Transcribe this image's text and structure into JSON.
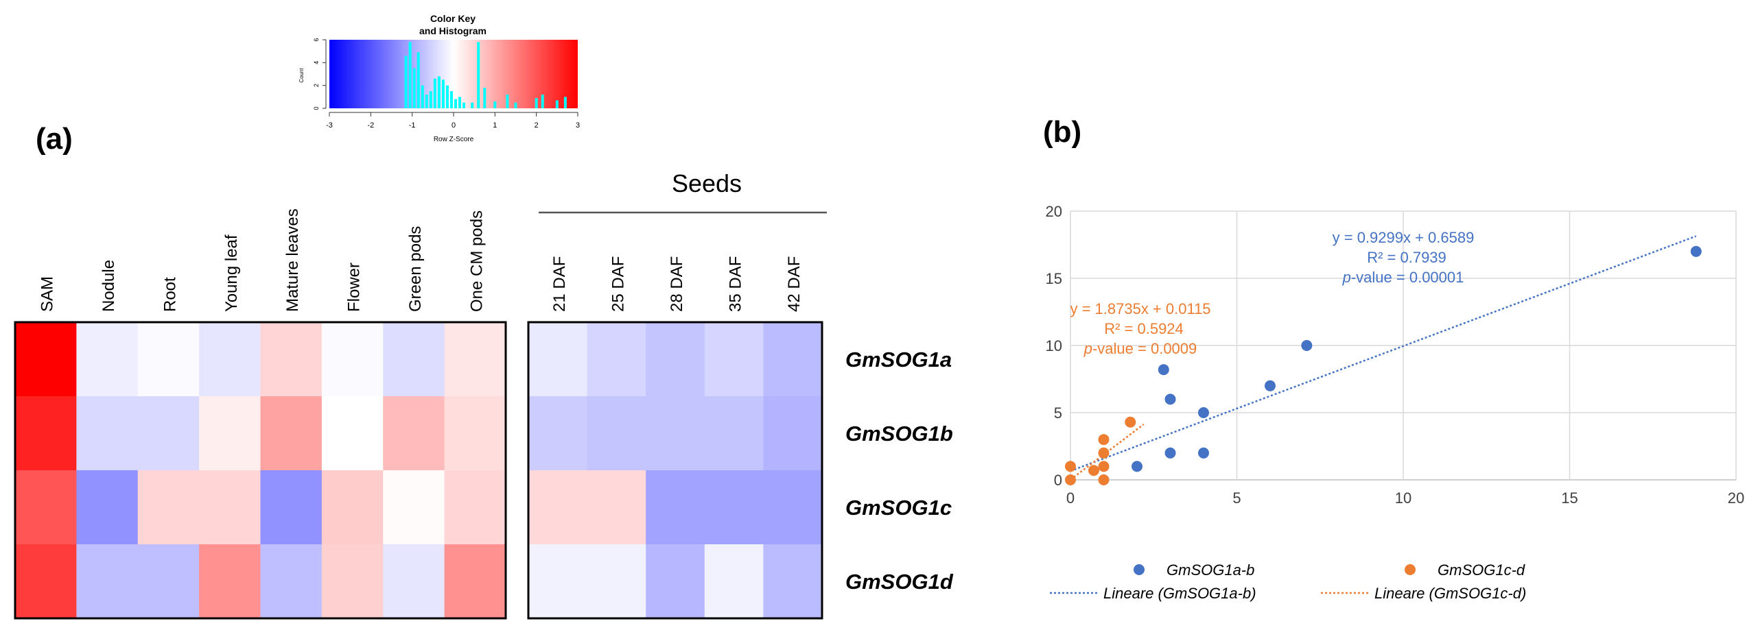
{
  "panel_a": {
    "label": "(a)",
    "color_key": {
      "title_line1": "Color Key",
      "title_line2": "and Histogram",
      "ylabel": "Count",
      "xlabel": "Row Z-Score",
      "xticks": [
        "-3",
        "-2",
        "-1",
        "0",
        "1",
        "2",
        "3"
      ],
      "yticks": [
        "0",
        "2",
        "4",
        "6"
      ],
      "gradient_colors": [
        "#0000ff",
        "#ffffff",
        "#ff0000"
      ],
      "histogram_color": "#00ffff",
      "histogram_bars": [
        {
          "z": -1.15,
          "count": 4.6
        },
        {
          "z": -1.05,
          "count": 5.8
        },
        {
          "z": -0.95,
          "count": 3.5
        },
        {
          "z": -0.85,
          "count": 4.9
        },
        {
          "z": -0.75,
          "count": 2.0
        },
        {
          "z": -0.65,
          "count": 1.2
        },
        {
          "z": -0.55,
          "count": 1.5
        },
        {
          "z": -0.45,
          "count": 2.6
        },
        {
          "z": -0.35,
          "count": 2.8
        },
        {
          "z": -0.25,
          "count": 2.5
        },
        {
          "z": -0.15,
          "count": 2.0
        },
        {
          "z": -0.05,
          "count": 1.5
        },
        {
          "z": 0.05,
          "count": 0.8
        },
        {
          "z": 0.15,
          "count": 1.0
        },
        {
          "z": 0.25,
          "count": 0.5
        },
        {
          "z": 0.45,
          "count": 0.5
        },
        {
          "z": 0.6,
          "count": 5.8
        },
        {
          "z": 0.75,
          "count": 1.8
        },
        {
          "z": 1.0,
          "count": 0.6
        },
        {
          "z": 1.3,
          "count": 1.2
        },
        {
          "z": 1.5,
          "count": 0.5
        },
        {
          "z": 2.0,
          "count": 0.9
        },
        {
          "z": 2.15,
          "count": 1.2
        },
        {
          "z": 2.5,
          "count": 0.7
        },
        {
          "z": 2.7,
          "count": 1.0
        }
      ]
    },
    "seeds_label": "Seeds",
    "columns_left": [
      "SAM",
      "Nodule",
      "Root",
      "Young leaf",
      "Mature leaves",
      "Flower",
      "Green pods",
      "One CM pods"
    ],
    "columns_right": [
      "21 DAF",
      "25 DAF",
      "28 DAF",
      "35 DAF",
      "42 DAF"
    ],
    "rows": [
      "GmSOG1a",
      "GmSOG1b",
      "GmSOG1c",
      "GmSOG1d"
    ],
    "z_scores_left": [
      [
        3.0,
        -0.2,
        -0.05,
        -0.3,
        0.5,
        -0.05,
        -0.4,
        0.3
      ],
      [
        2.6,
        -0.45,
        -0.45,
        0.2,
        1.1,
        0.0,
        0.8,
        0.4
      ],
      [
        2.0,
        -1.3,
        0.5,
        0.5,
        -1.3,
        0.6,
        0.05,
        0.5
      ],
      [
        2.3,
        -0.75,
        -0.75,
        1.3,
        -0.75,
        0.55,
        -0.3,
        1.3
      ]
    ],
    "z_scores_right": [
      [
        -0.25,
        -0.5,
        -0.7,
        -0.5,
        -0.8
      ],
      [
        -0.6,
        -0.7,
        -0.7,
        -0.7,
        -0.9
      ],
      [
        0.45,
        0.45,
        -1.1,
        -1.1,
        -1.1
      ],
      [
        -0.15,
        -0.15,
        -0.85,
        -0.15,
        -0.8
      ]
    ]
  },
  "panel_b": {
    "label": "(b)",
    "chart_data": {
      "type": "scatter",
      "xlim": [
        0,
        20
      ],
      "ylim": [
        0,
        20
      ],
      "xticks": [
        0,
        5,
        10,
        15,
        20
      ],
      "yticks": [
        0,
        5,
        10,
        15,
        20
      ],
      "grid": true,
      "legend_position": "bottom",
      "series": [
        {
          "name": "GmSOG1a-b",
          "color": "#4472c4",
          "points": [
            [
              18.8,
              17
            ],
            [
              7.1,
              10
            ],
            [
              6.0,
              7
            ],
            [
              2.8,
              8.2
            ],
            [
              3.0,
              6
            ],
            [
              4.0,
              5
            ],
            [
              3.0,
              2
            ],
            [
              4.0,
              2
            ],
            [
              2.0,
              1
            ]
          ],
          "trendline": {
            "name": "Lineare (GmSOG1a-b)",
            "slope": 0.9299,
            "intercept": 0.6589,
            "x_range": [
              0,
              18.8
            ]
          },
          "equation": "y = 0.9299x + 0.6589",
          "r2": "R² = 0.7939",
          "pvalue_label": "p",
          "pvalue_text": "-value = 0.00001"
        },
        {
          "name": "GmSOG1c-d",
          "color": "#ed7d31",
          "points": [
            [
              0,
              1
            ],
            [
              0,
              0
            ],
            [
              0.7,
              0.7
            ],
            [
              1.0,
              3
            ],
            [
              1.0,
              2
            ],
            [
              1.0,
              1
            ],
            [
              1.0,
              0
            ],
            [
              1.8,
              4.3
            ]
          ],
          "trendline": {
            "name": "Lineare (GmSOG1c-d)",
            "slope": 1.8735,
            "intercept": 0.0115,
            "x_range": [
              0,
              2.2
            ]
          },
          "equation": "y = 1.8735x + 0.0115",
          "r2": "R² = 0.5924",
          "pvalue_label": "p",
          "pvalue_text": "-value = 0.0009"
        }
      ]
    }
  }
}
